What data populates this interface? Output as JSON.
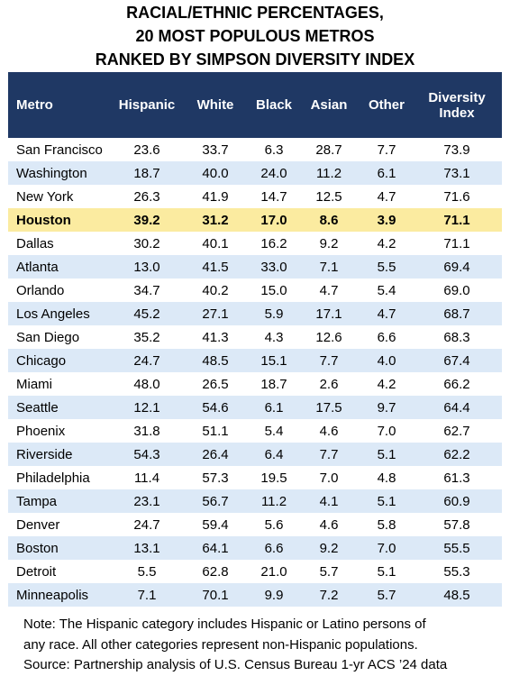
{
  "title": {
    "line1": "RACIAL/ETHNIC PERCENTAGES,",
    "line2": "20 MOST POPULOUS METROS",
    "line3": "RANKED BY SIMPSON DIVERSITY INDEX"
  },
  "table": {
    "headers": {
      "metro": "Metro",
      "hispanic": "Hispanic",
      "white": "White",
      "black": "Black",
      "asian": "Asian",
      "other": "Other",
      "diversity_line1": "Diversity",
      "diversity_line2": "Index"
    },
    "highlight_color": "#fbeba0",
    "header_color": "#1f3864",
    "stripe_color": "#dce9f7",
    "rows": [
      {
        "metro": "San Francisco",
        "hispanic": "23.6",
        "white": "33.7",
        "black": "6.3",
        "asian": "28.7",
        "other": "7.7",
        "index": "73.9",
        "highlight": false
      },
      {
        "metro": "Washington",
        "hispanic": "18.7",
        "white": "40.0",
        "black": "24.0",
        "asian": "11.2",
        "other": "6.1",
        "index": "73.1",
        "highlight": false
      },
      {
        "metro": "New York",
        "hispanic": "26.3",
        "white": "41.9",
        "black": "14.7",
        "asian": "12.5",
        "other": "4.7",
        "index": "71.6",
        "highlight": false
      },
      {
        "metro": "Houston",
        "hispanic": "39.2",
        "white": "31.2",
        "black": "17.0",
        "asian": "8.6",
        "other": "3.9",
        "index": "71.1",
        "highlight": true
      },
      {
        "metro": "Dallas",
        "hispanic": "30.2",
        "white": "40.1",
        "black": "16.2",
        "asian": "9.2",
        "other": "4.2",
        "index": "71.1",
        "highlight": false
      },
      {
        "metro": "Atlanta",
        "hispanic": "13.0",
        "white": "41.5",
        "black": "33.0",
        "asian": "7.1",
        "other": "5.5",
        "index": "69.4",
        "highlight": false
      },
      {
        "metro": "Orlando",
        "hispanic": "34.7",
        "white": "40.2",
        "black": "15.0",
        "asian": "4.7",
        "other": "5.4",
        "index": "69.0",
        "highlight": false
      },
      {
        "metro": "Los Angeles",
        "hispanic": "45.2",
        "white": "27.1",
        "black": "5.9",
        "asian": "17.1",
        "other": "4.7",
        "index": "68.7",
        "highlight": false
      },
      {
        "metro": "San Diego",
        "hispanic": "35.2",
        "white": "41.3",
        "black": "4.3",
        "asian": "12.6",
        "other": "6.6",
        "index": "68.3",
        "highlight": false
      },
      {
        "metro": "Chicago",
        "hispanic": "24.7",
        "white": "48.5",
        "black": "15.1",
        "asian": "7.7",
        "other": "4.0",
        "index": "67.4",
        "highlight": false
      },
      {
        "metro": "Miami",
        "hispanic": "48.0",
        "white": "26.5",
        "black": "18.7",
        "asian": "2.6",
        "other": "4.2",
        "index": "66.2",
        "highlight": false
      },
      {
        "metro": "Seattle",
        "hispanic": "12.1",
        "white": "54.6",
        "black": "6.1",
        "asian": "17.5",
        "other": "9.7",
        "index": "64.4",
        "highlight": false
      },
      {
        "metro": "Phoenix",
        "hispanic": "31.8",
        "white": "51.1",
        "black": "5.4",
        "asian": "4.6",
        "other": "7.0",
        "index": "62.7",
        "highlight": false
      },
      {
        "metro": "Riverside",
        "hispanic": "54.3",
        "white": "26.4",
        "black": "6.4",
        "asian": "7.7",
        "other": "5.1",
        "index": "62.2",
        "highlight": false
      },
      {
        "metro": "Philadelphia",
        "hispanic": "11.4",
        "white": "57.3",
        "black": "19.5",
        "asian": "7.0",
        "other": "4.8",
        "index": "61.3",
        "highlight": false
      },
      {
        "metro": "Tampa",
        "hispanic": "23.1",
        "white": "56.7",
        "black": "11.2",
        "asian": "4.1",
        "other": "5.1",
        "index": "60.9",
        "highlight": false
      },
      {
        "metro": "Denver",
        "hispanic": "24.7",
        "white": "59.4",
        "black": "5.6",
        "asian": "4.6",
        "other": "5.8",
        "index": "57.8",
        "highlight": false
      },
      {
        "metro": "Boston",
        "hispanic": "13.1",
        "white": "64.1",
        "black": "6.6",
        "asian": "9.2",
        "other": "7.0",
        "index": "55.5",
        "highlight": false
      },
      {
        "metro": "Detroit",
        "hispanic": "5.5",
        "white": "62.8",
        "black": "21.0",
        "asian": "5.7",
        "other": "5.1",
        "index": "55.3",
        "highlight": false
      },
      {
        "metro": "Minneapolis",
        "hispanic": "7.1",
        "white": "70.1",
        "black": "9.9",
        "asian": "7.2",
        "other": "5.7",
        "index": "48.5",
        "highlight": false
      }
    ]
  },
  "footer": {
    "note_line1": "Note: The Hispanic category includes Hispanic or Latino persons of",
    "note_line2": "any race. All other categories represent non-Hispanic populations.",
    "source": "Source: Partnership analysis of U.S. Census Bureau 1-yr ACS ’24 data"
  }
}
